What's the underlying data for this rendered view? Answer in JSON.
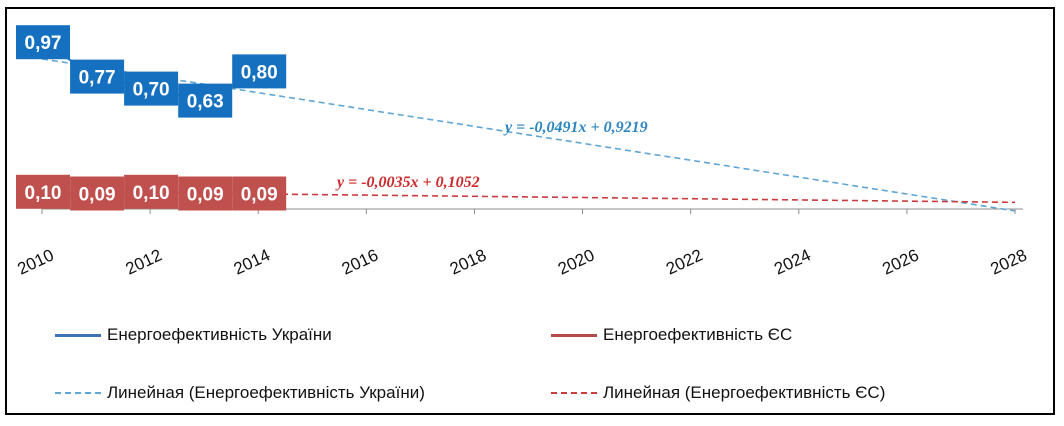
{
  "chart_data": {
    "type": "line",
    "x": [
      2010,
      2011,
      2012,
      2013,
      2014
    ],
    "xlim": [
      2010,
      2028
    ],
    "x_ticks": [
      "2010",
      "2012",
      "2014",
      "2016",
      "2018",
      "2020",
      "2022",
      "2024",
      "2026",
      "2028"
    ],
    "ylim": [
      0,
      1.0
    ],
    "series": [
      {
        "name": "Енергоефективність України",
        "values": [
          0.97,
          0.77,
          0.7,
          0.63,
          0.8
        ],
        "labels": [
          "0,97",
          "0,77",
          "0,70",
          "0,63",
          "0,80"
        ],
        "color": "#1670c0"
      },
      {
        "name": "Енергоефективність ЄС",
        "values": [
          0.1,
          0.09,
          0.1,
          0.09,
          0.09
        ],
        "labels": [
          "0,10",
          "0,09",
          "0,10",
          "0,09",
          "0,09"
        ],
        "color": "#c0504d"
      }
    ],
    "trendlines": [
      {
        "name": "Линейная (Енергоефективність України)",
        "equation": "y = -0,0491x + 0,9219",
        "slope": -0.0491,
        "intercept": 0.9219,
        "color": "#5fa6d6"
      },
      {
        "name": "Линейная (Енергоефективність ЄС)",
        "equation": "y = -0,0035x + 0,1052",
        "slope": -0.0035,
        "intercept": 0.1052,
        "color": "#cc3b3b"
      }
    ],
    "legend_position": "bottom",
    "grid": false
  }
}
